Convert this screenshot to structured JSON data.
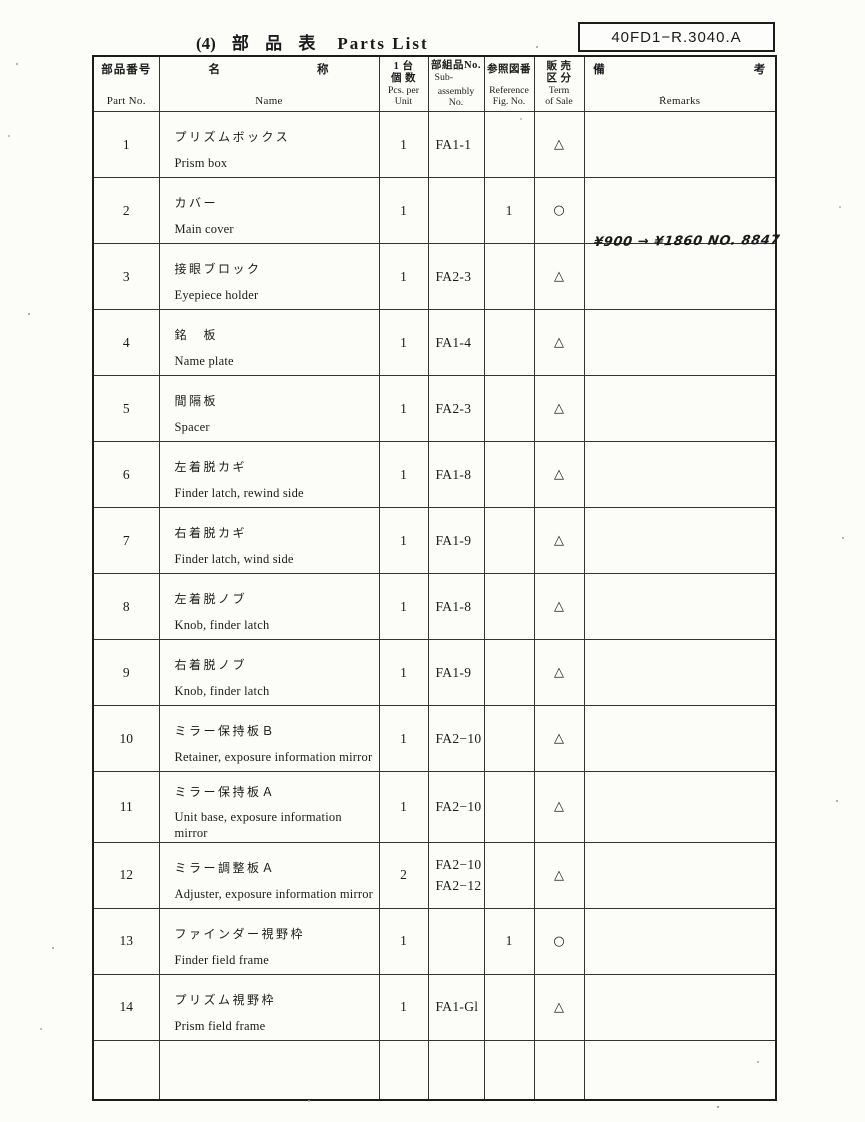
{
  "page": {
    "section_no": "(4)",
    "title_jp": "部 品 表",
    "title_en": "Parts List",
    "doc_code": "40FD1−R.3040.A"
  },
  "table": {
    "headers": {
      "part_no": {
        "jp": "部品番号",
        "en": "Part No."
      },
      "name": {
        "jp1": "名",
        "jp2": "称",
        "en": "Name"
      },
      "qty": {
        "jp1": "1 台",
        "jp2": "個 数",
        "en1": "Pcs. per",
        "en2": "Unit"
      },
      "sub_assembly": {
        "jp": "部組品No.",
        "en1": "Sub-",
        "en2": "assembly",
        "en3": "No."
      },
      "ref_fig": {
        "jp": "参照図番",
        "en1": "Reference",
        "en2": "Fig. No."
      },
      "term": {
        "jp1": "販 売",
        "jp2": "区 分",
        "en1": "Term",
        "en2": "of Sale"
      },
      "remarks": {
        "jp1": "備",
        "jp2": "考",
        "en": "Remarks"
      }
    },
    "rows": [
      {
        "part_no": "1",
        "name_jp": "プリズムボックス",
        "name_en": "Prism box",
        "qty": "1",
        "sub_assembly": "FA1-1",
        "ref_fig": "",
        "term": "△",
        "remarks": ""
      },
      {
        "part_no": "2",
        "name_jp": "カバー",
        "name_en": "Main cover",
        "qty": "1",
        "sub_assembly": "",
        "ref_fig": "1",
        "term": "○",
        "remarks": "¥900 → ¥1860  NO. 8847"
      },
      {
        "part_no": "3",
        "name_jp": "接眼ブロック",
        "name_en": "Eyepiece holder",
        "qty": "1",
        "sub_assembly": "FA2-3",
        "ref_fig": "",
        "term": "△",
        "remarks": ""
      },
      {
        "part_no": "4",
        "name_jp": "銘　板",
        "name_en": "Name plate",
        "qty": "1",
        "sub_assembly": "FA1-4",
        "ref_fig": "",
        "term": "△",
        "remarks": ""
      },
      {
        "part_no": "5",
        "name_jp": "間隔板",
        "name_en": "Spacer",
        "qty": "1",
        "sub_assembly": "FA2-3",
        "ref_fig": "",
        "term": "△",
        "remarks": ""
      },
      {
        "part_no": "6",
        "name_jp": "左着脱カギ",
        "name_en": "Finder latch, rewind side",
        "qty": "1",
        "sub_assembly": "FA1-8",
        "ref_fig": "",
        "term": "△",
        "remarks": ""
      },
      {
        "part_no": "7",
        "name_jp": "右着脱カギ",
        "name_en": "Finder latch, wind side",
        "qty": "1",
        "sub_assembly": "FA1-9",
        "ref_fig": "",
        "term": "△",
        "remarks": ""
      },
      {
        "part_no": "8",
        "name_jp": "左着脱ノブ",
        "name_en": "Knob, finder latch",
        "qty": "1",
        "sub_assembly": "FA1-8",
        "ref_fig": "",
        "term": "△",
        "remarks": ""
      },
      {
        "part_no": "9",
        "name_jp": "右着脱ノブ",
        "name_en": "Knob, finder latch",
        "qty": "1",
        "sub_assembly": "FA1-9",
        "ref_fig": "",
        "term": "△",
        "remarks": ""
      },
      {
        "part_no": "10",
        "name_jp": "ミラー保持板Ｂ",
        "name_en": "Retainer, exposure information mirror",
        "qty": "1",
        "sub_assembly": "FA2−10",
        "ref_fig": "",
        "term": "△",
        "remarks": ""
      },
      {
        "part_no": "11",
        "name_jp": "ミラー保持板Ａ",
        "name_en": "Unit base, exposure information mirror",
        "qty": "1",
        "sub_assembly": "FA2−10",
        "ref_fig": "",
        "term": "△",
        "remarks": ""
      },
      {
        "part_no": "12",
        "name_jp": "ミラー調整板Ａ",
        "name_en": "Adjuster, exposure information mirror",
        "qty": "2",
        "sub_assembly": "FA2−10",
        "sub_assembly2": "FA2−12",
        "ref_fig": "",
        "term": "△",
        "remarks": ""
      },
      {
        "part_no": "13",
        "name_jp": "ファインダー視野枠",
        "name_en": "Finder field frame",
        "qty": "1",
        "sub_assembly": "",
        "ref_fig": "1",
        "term": "○",
        "remarks": ""
      },
      {
        "part_no": "14",
        "name_jp": "プリズム視野枠",
        "name_en": "Prism field frame",
        "qty": "1",
        "sub_assembly": "FA1-Gl",
        "ref_fig": "",
        "term": "△",
        "remarks": ""
      }
    ]
  }
}
